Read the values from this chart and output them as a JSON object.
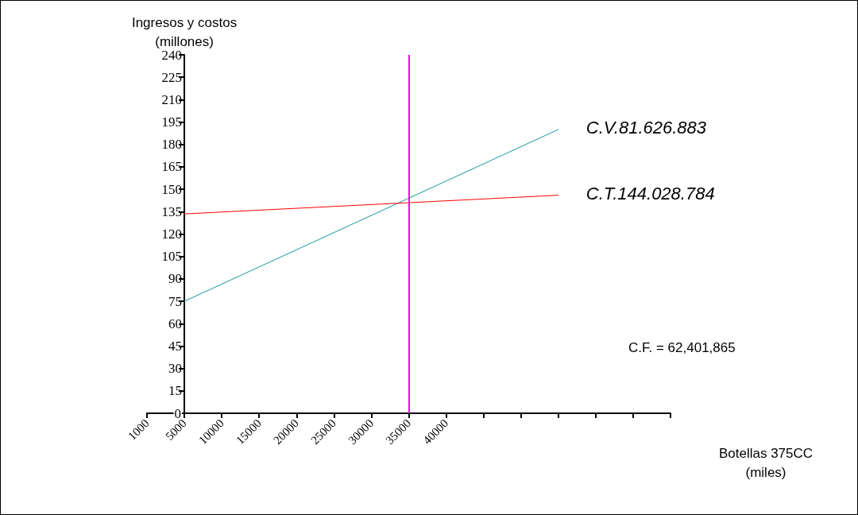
{
  "chart_data": {
    "type": "line",
    "xlabel": "Botellas 375CC\n(miles)",
    "ylabel": "Ingresos y costos\n(millones)",
    "categories": [
      "1000",
      "5000",
      "10000",
      "15000",
      "20000",
      "25000",
      "30000",
      "35000",
      "40000",
      null,
      null,
      null,
      null,
      null,
      null
    ],
    "series": [
      {
        "name": "C.V.81.626.883",
        "color": "#139a9a",
        "values": [
          null,
          75,
          null,
          null,
          null,
          null,
          null,
          null,
          null,
          null,
          null,
          190,
          null,
          null,
          null
        ]
      },
      {
        "name": "C.T.144.028.784",
        "color": "#ff0000",
        "values": [
          null,
          133.5,
          null,
          null,
          null,
          null,
          null,
          null,
          null,
          null,
          null,
          146,
          null,
          null,
          null
        ]
      }
    ],
    "ylim": [
      0,
      240
    ],
    "yticks": [
      0,
      15,
      30,
      45,
      60,
      75,
      90,
      105,
      120,
      135,
      150,
      165,
      180,
      195,
      210,
      225,
      240
    ],
    "ref_lines": [
      {
        "axis": "x",
        "value": "35000",
        "color": "#ff00ff"
      }
    ],
    "annotations": [
      "C.F. = 62,401,865"
    ],
    "grid": false,
    "legend": false,
    "marker": "none",
    "line_style": "solid"
  }
}
